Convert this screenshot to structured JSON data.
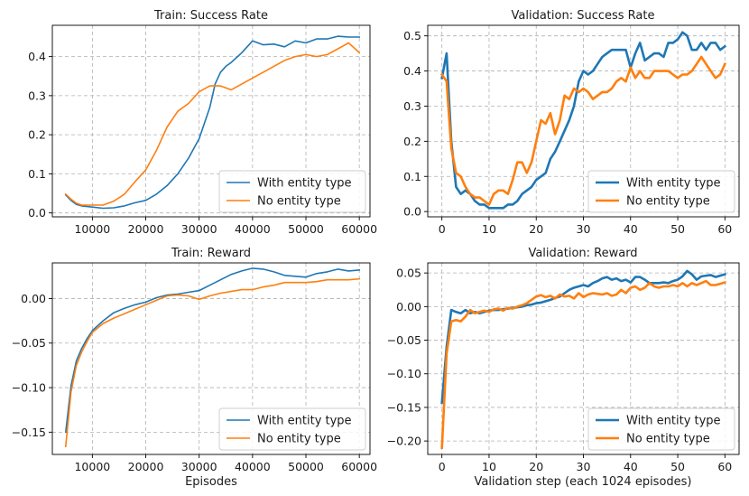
{
  "colors": {
    "blue": "#1f77b4",
    "orange": "#ff7f0e"
  },
  "chart_data": [
    {
      "id": "p0",
      "type": "line",
      "title": "Train: Success Rate",
      "xlabel": "",
      "xlim": [
        2500,
        62000
      ],
      "ylim": [
        -0.01,
        0.48
      ],
      "xticks": [
        10000,
        20000,
        30000,
        40000,
        50000,
        60000
      ],
      "xtick_labels": [
        "10000",
        "20000",
        "30000",
        "40000",
        "50000",
        "60000"
      ],
      "yticks": [
        0.0,
        0.1,
        0.2,
        0.3,
        0.4
      ],
      "ytick_labels": [
        "0.0",
        "0.1",
        "0.2",
        "0.3",
        "0.4"
      ],
      "legend_loc": "lower-right",
      "line_width": 1.6,
      "series": [
        {
          "name": "With entity type",
          "color": "blue",
          "x": [
            5000,
            6000,
            7000,
            8000,
            10000,
            12000,
            14000,
            16000,
            18000,
            20000,
            22000,
            24000,
            26000,
            28000,
            29000,
            30000,
            32000,
            33000,
            34000,
            35000,
            36000,
            38000,
            40000,
            42000,
            44000,
            46000,
            48000,
            50000,
            52000,
            54000,
            56000,
            58000,
            60000
          ],
          "y": [
            0.046,
            0.032,
            0.022,
            0.018,
            0.015,
            0.012,
            0.013,
            0.018,
            0.026,
            0.032,
            0.048,
            0.07,
            0.1,
            0.14,
            0.165,
            0.19,
            0.27,
            0.33,
            0.36,
            0.375,
            0.385,
            0.41,
            0.44,
            0.43,
            0.432,
            0.425,
            0.44,
            0.435,
            0.445,
            0.445,
            0.452,
            0.45,
            0.45
          ]
        },
        {
          "name": "No entity type",
          "color": "orange",
          "x": [
            5000,
            6000,
            7000,
            8000,
            10000,
            12000,
            14000,
            16000,
            18000,
            20000,
            22000,
            24000,
            26000,
            28000,
            30000,
            32000,
            34000,
            36000,
            38000,
            40000,
            42000,
            44000,
            46000,
            48000,
            50000,
            52000,
            54000,
            56000,
            58000,
            60000
          ],
          "y": [
            0.048,
            0.035,
            0.025,
            0.02,
            0.02,
            0.02,
            0.03,
            0.048,
            0.08,
            0.11,
            0.16,
            0.22,
            0.26,
            0.28,
            0.31,
            0.325,
            0.325,
            0.315,
            0.33,
            0.345,
            0.36,
            0.375,
            0.39,
            0.4,
            0.405,
            0.4,
            0.405,
            0.42,
            0.435,
            0.41
          ]
        }
      ]
    },
    {
      "id": "p1",
      "type": "line",
      "title": "Validation: Success Rate",
      "xlabel": "",
      "xlim": [
        -3,
        63
      ],
      "ylim": [
        -0.015,
        0.53
      ],
      "xticks": [
        0,
        10,
        20,
        30,
        40,
        50,
        60
      ],
      "xtick_labels": [
        "0",
        "10",
        "20",
        "30",
        "40",
        "50",
        "60"
      ],
      "yticks": [
        0.0,
        0.1,
        0.2,
        0.3,
        0.4,
        0.5
      ],
      "ytick_labels": [
        "0.0",
        "0.1",
        "0.2",
        "0.3",
        "0.4",
        "0.5"
      ],
      "legend_loc": "lower-right",
      "line_width": 2.6,
      "series": [
        {
          "name": "With entity type",
          "color": "blue",
          "x": [
            0,
            1,
            2,
            3,
            4,
            5,
            6,
            7,
            8,
            9,
            10,
            11,
            12,
            13,
            14,
            15,
            16,
            17,
            18,
            19,
            20,
            21,
            22,
            23,
            24,
            25,
            26,
            27,
            28,
            29,
            30,
            31,
            32,
            33,
            34,
            35,
            36,
            37,
            38,
            39,
            40,
            41,
            42,
            43,
            44,
            45,
            46,
            47,
            48,
            49,
            50,
            51,
            52,
            53,
            54,
            55,
            56,
            57,
            58,
            59,
            60
          ],
          "y": [
            0.38,
            0.45,
            0.2,
            0.07,
            0.05,
            0.06,
            0.05,
            0.03,
            0.02,
            0.02,
            0.01,
            0.01,
            0.01,
            0.01,
            0.02,
            0.02,
            0.03,
            0.05,
            0.06,
            0.07,
            0.09,
            0.1,
            0.11,
            0.15,
            0.17,
            0.2,
            0.23,
            0.26,
            0.3,
            0.37,
            0.4,
            0.39,
            0.4,
            0.42,
            0.44,
            0.45,
            0.46,
            0.46,
            0.46,
            0.46,
            0.41,
            0.45,
            0.48,
            0.43,
            0.44,
            0.45,
            0.45,
            0.44,
            0.48,
            0.48,
            0.49,
            0.51,
            0.5,
            0.46,
            0.46,
            0.48,
            0.46,
            0.48,
            0.48,
            0.46,
            0.47
          ]
        },
        {
          "name": "No entity type",
          "color": "orange",
          "x": [
            0,
            1,
            2,
            3,
            4,
            5,
            6,
            7,
            8,
            9,
            10,
            11,
            12,
            13,
            14,
            15,
            16,
            17,
            18,
            19,
            20,
            21,
            22,
            23,
            24,
            25,
            26,
            27,
            28,
            29,
            30,
            31,
            32,
            33,
            34,
            35,
            36,
            37,
            38,
            39,
            40,
            41,
            42,
            43,
            44,
            45,
            46,
            47,
            48,
            49,
            50,
            51,
            52,
            53,
            54,
            55,
            56,
            57,
            58,
            59,
            60
          ],
          "y": [
            0.39,
            0.37,
            0.18,
            0.11,
            0.1,
            0.07,
            0.05,
            0.04,
            0.04,
            0.03,
            0.02,
            0.05,
            0.06,
            0.06,
            0.05,
            0.09,
            0.14,
            0.14,
            0.11,
            0.14,
            0.2,
            0.26,
            0.25,
            0.28,
            0.22,
            0.26,
            0.33,
            0.32,
            0.35,
            0.34,
            0.35,
            0.34,
            0.32,
            0.33,
            0.34,
            0.34,
            0.35,
            0.37,
            0.38,
            0.37,
            0.41,
            0.38,
            0.4,
            0.38,
            0.38,
            0.4,
            0.4,
            0.4,
            0.4,
            0.39,
            0.38,
            0.39,
            0.39,
            0.4,
            0.42,
            0.44,
            0.42,
            0.4,
            0.38,
            0.39,
            0.42
          ]
        }
      ]
    },
    {
      "id": "p2",
      "type": "line",
      "title": "Train: Reward",
      "xlabel": "Episodes",
      "xlim": [
        2500,
        62000
      ],
      "ylim": [
        -0.175,
        0.04
      ],
      "xticks": [
        10000,
        20000,
        30000,
        40000,
        50000,
        60000
      ],
      "xtick_labels": [
        "10000",
        "20000",
        "30000",
        "40000",
        "50000",
        "60000"
      ],
      "yticks": [
        -0.15,
        -0.1,
        -0.05,
        0.0
      ],
      "ytick_labels": [
        "−0.15",
        "−0.10",
        "−0.05",
        "0.00"
      ],
      "legend_loc": "lower-right",
      "line_width": 1.6,
      "series": [
        {
          "name": "With entity type",
          "color": "blue",
          "x": [
            5000,
            6000,
            7000,
            8000,
            9000,
            10000,
            12000,
            14000,
            16000,
            18000,
            20000,
            22000,
            24000,
            26000,
            28000,
            30000,
            32000,
            34000,
            36000,
            38000,
            40000,
            42000,
            44000,
            46000,
            48000,
            50000,
            52000,
            54000,
            56000,
            58000,
            60000
          ],
          "y": [
            -0.15,
            -0.098,
            -0.07,
            -0.056,
            -0.045,
            -0.036,
            -0.025,
            -0.016,
            -0.011,
            -0.007,
            -0.004,
            0.001,
            0.004,
            0.005,
            0.007,
            0.009,
            0.015,
            0.021,
            0.027,
            0.031,
            0.034,
            0.033,
            0.03,
            0.026,
            0.025,
            0.024,
            0.028,
            0.03,
            0.033,
            0.031,
            0.032
          ]
        },
        {
          "name": "No entity type",
          "color": "orange",
          "x": [
            5000,
            6000,
            7000,
            8000,
            9000,
            10000,
            12000,
            14000,
            16000,
            18000,
            20000,
            22000,
            24000,
            26000,
            28000,
            30000,
            32000,
            34000,
            36000,
            38000,
            40000,
            42000,
            44000,
            46000,
            48000,
            50000,
            52000,
            54000,
            56000,
            58000,
            60000
          ],
          "y": [
            -0.166,
            -0.105,
            -0.075,
            -0.06,
            -0.048,
            -0.038,
            -0.028,
            -0.022,
            -0.017,
            -0.012,
            -0.007,
            -0.002,
            0.003,
            0.004,
            0.003,
            -0.001,
            0.003,
            0.006,
            0.008,
            0.01,
            0.01,
            0.013,
            0.015,
            0.018,
            0.018,
            0.018,
            0.019,
            0.021,
            0.021,
            0.021,
            0.022
          ]
        }
      ]
    },
    {
      "id": "p3",
      "type": "line",
      "title": "Validation: Reward",
      "xlabel": "Validation step (each 1024 episodes)",
      "xlim": [
        -3,
        63
      ],
      "ylim": [
        -0.22,
        0.065
      ],
      "xticks": [
        0,
        10,
        20,
        30,
        40,
        50,
        60
      ],
      "xtick_labels": [
        "0",
        "10",
        "20",
        "30",
        "40",
        "50",
        "60"
      ],
      "yticks": [
        -0.2,
        -0.15,
        -0.1,
        -0.05,
        0.0,
        0.05
      ],
      "ytick_labels": [
        "−0.20",
        "−0.15",
        "−0.10",
        "−0.05",
        "0.00",
        "0.05"
      ],
      "legend_loc": "lower-right",
      "line_width": 2.6,
      "series": [
        {
          "name": "With entity type",
          "color": "blue",
          "x": [
            0,
            1,
            2,
            3,
            4,
            5,
            6,
            7,
            8,
            9,
            10,
            11,
            12,
            13,
            14,
            15,
            16,
            17,
            18,
            19,
            20,
            21,
            22,
            23,
            24,
            25,
            26,
            27,
            28,
            29,
            30,
            31,
            32,
            33,
            34,
            35,
            36,
            37,
            38,
            39,
            40,
            41,
            42,
            43,
            44,
            45,
            46,
            47,
            48,
            49,
            50,
            51,
            52,
            53,
            54,
            55,
            56,
            57,
            58,
            59,
            60
          ],
          "y": [
            -0.143,
            -0.06,
            -0.005,
            -0.008,
            -0.01,
            -0.005,
            -0.01,
            -0.008,
            -0.01,
            -0.008,
            -0.006,
            -0.005,
            -0.005,
            -0.004,
            -0.003,
            -0.002,
            -0.001,
            0.0,
            0.002,
            0.003,
            0.005,
            0.006,
            0.008,
            0.01,
            0.013,
            0.015,
            0.02,
            0.025,
            0.028,
            0.03,
            0.032,
            0.03,
            0.035,
            0.038,
            0.042,
            0.044,
            0.04,
            0.042,
            0.038,
            0.04,
            0.036,
            0.044,
            0.044,
            0.04,
            0.035,
            0.035,
            0.035,
            0.036,
            0.035,
            0.038,
            0.04,
            0.045,
            0.053,
            0.048,
            0.04,
            0.045,
            0.046,
            0.047,
            0.044,
            0.046,
            0.048
          ]
        },
        {
          "name": "No entity type",
          "color": "orange",
          "x": [
            0,
            1,
            2,
            3,
            4,
            5,
            6,
            7,
            8,
            9,
            10,
            11,
            12,
            13,
            14,
            15,
            16,
            17,
            18,
            19,
            20,
            21,
            22,
            23,
            24,
            25,
            26,
            27,
            28,
            29,
            30,
            31,
            32,
            33,
            34,
            35,
            36,
            37,
            38,
            39,
            40,
            41,
            42,
            43,
            44,
            45,
            46,
            47,
            48,
            49,
            50,
            51,
            52,
            53,
            54,
            55,
            56,
            57,
            58,
            59,
            60
          ],
          "y": [
            -0.21,
            -0.07,
            -0.022,
            -0.02,
            -0.022,
            -0.015,
            -0.005,
            -0.01,
            -0.008,
            -0.006,
            -0.008,
            -0.004,
            -0.003,
            -0.006,
            -0.002,
            -0.003,
            0.0,
            0.002,
            0.005,
            0.01,
            0.015,
            0.017,
            0.014,
            0.016,
            0.012,
            0.018,
            0.015,
            0.016,
            0.012,
            0.02,
            0.014,
            0.018,
            0.02,
            0.019,
            0.018,
            0.02,
            0.016,
            0.018,
            0.025,
            0.02,
            0.028,
            0.03,
            0.025,
            0.028,
            0.035,
            0.03,
            0.028,
            0.03,
            0.03,
            0.032,
            0.03,
            0.035,
            0.03,
            0.035,
            0.032,
            0.035,
            0.038,
            0.032,
            0.032,
            0.034,
            0.036
          ]
        }
      ]
    }
  ]
}
